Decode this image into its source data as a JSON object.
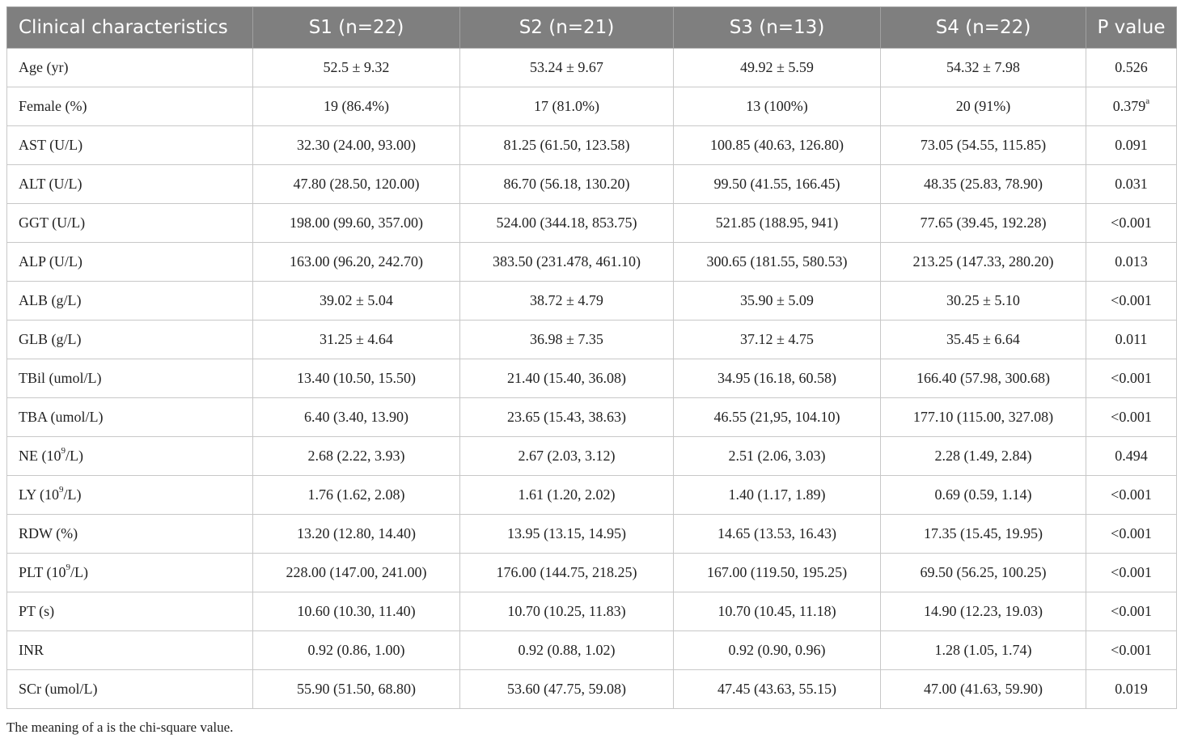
{
  "table": {
    "headers": [
      "Clinical characteristics",
      "S1 (n=22)",
      "S2 (n=21)",
      "S3 (n=13)",
      "S4 (n=22)",
      "P value"
    ],
    "rows": [
      {
        "label": "Age (yr)",
        "sup": "",
        "label_after": "",
        "cells": [
          "52.5 ± 9.32",
          "53.24 ± 9.67",
          "49.92 ± 5.59",
          "54.32 ± 7.98"
        ],
        "p": "0.526",
        "p_sup": ""
      },
      {
        "label": "Female (%)",
        "sup": "",
        "label_after": "",
        "cells": [
          "19 (86.4%)",
          "17 (81.0%)",
          "13 (100%)",
          "20 (91%)"
        ],
        "p": "0.379",
        "p_sup": "a"
      },
      {
        "label": "AST (U/L)",
        "sup": "",
        "label_after": "",
        "cells": [
          "32.30 (24.00, 93.00)",
          "81.25 (61.50, 123.58)",
          "100.85 (40.63, 126.80)",
          "73.05 (54.55, 115.85)"
        ],
        "p": "0.091",
        "p_sup": ""
      },
      {
        "label": "ALT (U/L)",
        "sup": "",
        "label_after": "",
        "cells": [
          "47.80 (28.50, 120.00)",
          "86.70 (56.18, 130.20)",
          "99.50 (41.55, 166.45)",
          "48.35 (25.83, 78.90)"
        ],
        "p": "0.031",
        "p_sup": ""
      },
      {
        "label": "GGT (U/L)",
        "sup": "",
        "label_after": "",
        "cells": [
          "198.00 (99.60, 357.00)",
          "524.00 (344.18, 853.75)",
          "521.85 (188.95, 941)",
          "77.65 (39.45, 192.28)"
        ],
        "p": "<0.001",
        "p_sup": ""
      },
      {
        "label": "ALP (U/L)",
        "sup": "",
        "label_after": "",
        "cells": [
          "163.00 (96.20, 242.70)",
          "383.50 (231.478, 461.10)",
          "300.65 (181.55, 580.53)",
          "213.25 (147.33, 280.20)"
        ],
        "p": "0.013",
        "p_sup": ""
      },
      {
        "label": "ALB (g/L)",
        "sup": "",
        "label_after": "",
        "cells": [
          "39.02 ± 5.04",
          "38.72 ± 4.79",
          "35.90 ± 5.09",
          "30.25 ± 5.10"
        ],
        "p": "<0.001",
        "p_sup": ""
      },
      {
        "label": "GLB (g/L)",
        "sup": "",
        "label_after": "",
        "cells": [
          "31.25 ± 4.64",
          "36.98 ± 7.35",
          "37.12 ± 4.75",
          "35.45 ± 6.64"
        ],
        "p": "0.011",
        "p_sup": ""
      },
      {
        "label": "TBil (umol/L)",
        "sup": "",
        "label_after": "",
        "cells": [
          "13.40 (10.50, 15.50)",
          "21.40 (15.40, 36.08)",
          "34.95 (16.18, 60.58)",
          "166.40 (57.98, 300.68)"
        ],
        "p": "<0.001",
        "p_sup": ""
      },
      {
        "label": "TBA (umol/L)",
        "sup": "",
        "label_after": "",
        "cells": [
          "6.40 (3.40, 13.90)",
          "23.65 (15.43, 38.63)",
          "46.55 (21,95, 104.10)",
          "177.10 (115.00, 327.08)"
        ],
        "p": "<0.001",
        "p_sup": ""
      },
      {
        "label": "NE (10",
        "sup": "9",
        "label_after": "/L)",
        "cells": [
          "2.68 (2.22, 3.93)",
          "2.67 (2.03, 3.12)",
          "2.51 (2.06, 3.03)",
          "2.28 (1.49, 2.84)"
        ],
        "p": "0.494",
        "p_sup": ""
      },
      {
        "label": "LY (10",
        "sup": "9",
        "label_after": "/L)",
        "cells": [
          "1.76 (1.62, 2.08)",
          "1.61 (1.20, 2.02)",
          "1.40 (1.17, 1.89)",
          "0.69 (0.59, 1.14)"
        ],
        "p": "<0.001",
        "p_sup": ""
      },
      {
        "label": "RDW (%)",
        "sup": "",
        "label_after": "",
        "cells": [
          "13.20 (12.80, 14.40)",
          "13.95 (13.15, 14.95)",
          "14.65 (13.53, 16.43)",
          "17.35 (15.45, 19.95)"
        ],
        "p": "<0.001",
        "p_sup": ""
      },
      {
        "label": "PLT (10",
        "sup": "9",
        "label_after": "/L)",
        "cells": [
          "228.00 (147.00, 241.00)",
          "176.00 (144.75, 218.25)",
          "167.00 (119.50, 195.25)",
          "69.50 (56.25, 100.25)"
        ],
        "p": "<0.001",
        "p_sup": ""
      },
      {
        "label": "PT (s)",
        "sup": "",
        "label_after": "",
        "cells": [
          "10.60 (10.30, 11.40)",
          "10.70 (10.25, 11.83)",
          "10.70 (10.45, 11.18)",
          "14.90 (12.23, 19.03)"
        ],
        "p": "<0.001",
        "p_sup": ""
      },
      {
        "label": "INR",
        "sup": "",
        "label_after": "",
        "cells": [
          "0.92 (0.86, 1.00)",
          "0.92 (0.88, 1.02)",
          "0.92 (0.90, 0.96)",
          "1.28 (1.05, 1.74)"
        ],
        "p": "<0.001",
        "p_sup": ""
      },
      {
        "label": "SCr (umol/L)",
        "sup": "",
        "label_after": "",
        "cells": [
          "55.90 (51.50, 68.80)",
          "53.60 (47.75, 59.08)",
          "47.45 (43.63, 55.15)",
          "47.00 (41.63, 59.90)"
        ],
        "p": "0.019",
        "p_sup": ""
      }
    ]
  },
  "footnote": "The meaning of a is the chi-square value."
}
